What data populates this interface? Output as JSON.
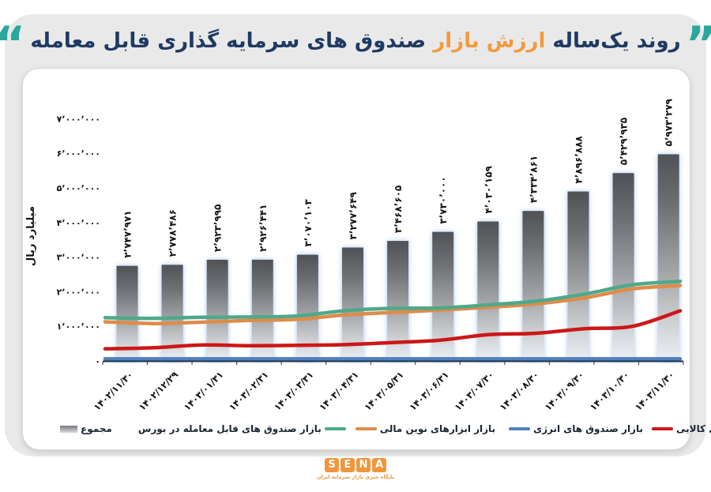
{
  "title": {
    "quote_open": "“",
    "quote_close": "”",
    "part1": "روند یک‌ساله ",
    "highlight": "ارزش بازار ",
    "part2": "صندوق های سرمایه گذاری قابل معامله",
    "quote_color": "#2ba89d",
    "highlight_color": "#f59a3e",
    "text_color": "#1f3a63"
  },
  "chart_data": {
    "type": "combo-bar-line",
    "title": "روند یک‌ساله ارزش بازار صندوق های سرمایه گذاری قابل معامله",
    "ylabel": "میلیارد ریال",
    "ylim": [
      0,
      7000000
    ],
    "ytick_step": 1000000,
    "ytick_labels": [
      "۰",
      "۱٬۰۰۰٬۰۰۰",
      "۲٬۰۰۰٬۰۰۰",
      "۳٬۰۰۰٬۰۰۰",
      "۴٬۰۰۰٬۰۰۰",
      "۵٬۰۰۰٬۰۰۰",
      "۶٬۰۰۰٬۰۰۰",
      "۷٬۰۰۰٬۰۰۰"
    ],
    "grid": false,
    "categories": [
      "۱۴۰۲/۱۱/۳۰",
      "۱۴۰۲/۱۲/۲۹",
      "۱۴۰۳/۰۱/۳۱",
      "۱۴۰۳/۰۲/۳۱",
      "۱۴۰۳/۰۳/۳۱",
      "۱۴۰۳/۰۴/۳۱",
      "۱۴۰۳/۰۵/۳۱",
      "۱۴۰۳/۰۶/۳۱",
      "۱۴۰۳/۰۷/۳۰",
      "۱۴۰۳/۰۸/۳۰",
      "۱۴۰۳/۰۹/۳۰",
      "۱۴۰۳/۱۰/۳۰",
      "۱۴۰۳/۱۱/۳۰"
    ],
    "bar_series": {
      "name": "مجموع",
      "values": [
        2747971,
        2778486,
        2923995,
        2926441,
        3070103,
        3277649,
        3468605,
        3730000,
        4030159,
        4334861,
        4896888,
        5429935,
        5973279
      ],
      "value_labels": [
        "۲٬۷۴۷٬۹۷۱",
        "۲٬۷۷۸٬۴۸۶",
        "۲٬۹۲۳٬۹۹۵",
        "۲٬۹۲۶٬۴۴۱",
        "۳٬۰۷۰٬۱۰۳",
        "۳٬۲۷۷٬۶۴۹",
        "۳٬۴۶۸٬۶۰۵",
        "۳٬۷۳۰٬۰۰۰",
        "۴٬۰۳۰٬۱۵۹",
        "۴٬۳۳۴٬۸۶۱",
        "۴٬۸۹۶٬۸۸۸",
        "۵٬۴۲۹٬۹۳۵",
        "۵٬۹۷۳٬۲۷۹"
      ],
      "bar_color_top": "#505256",
      "bar_color_bottom": "#ecf0f6",
      "glow_color": "#a9c6ee"
    },
    "line_series": [
      {
        "name": "بازار صندوق های قابل معامله در بورس",
        "color": "#4ea98a",
        "values": [
          1250000,
          1230000,
          1260000,
          1270000,
          1300000,
          1450000,
          1520000,
          1530000,
          1620000,
          1730000,
          1930000,
          2200000,
          2300000
        ]
      },
      {
        "name": "بازار ابزارهای نوین مالی",
        "color": "#de8c4a",
        "values": [
          1130000,
          1080000,
          1120000,
          1170000,
          1200000,
          1330000,
          1400000,
          1470000,
          1550000,
          1650000,
          1820000,
          2080000,
          2180000
        ]
      },
      {
        "name": "بازار صندوق های انرژی",
        "color": "#4f81bd",
        "values": [
          60000,
          60000,
          60000,
          60000,
          60000,
          60000,
          60000,
          60000,
          60000,
          60000,
          60000,
          60000,
          60000
        ]
      },
      {
        "name": "بازار صندوق های کالایی",
        "color": "#cc1717",
        "values": [
          350000,
          380000,
          460000,
          440000,
          450000,
          470000,
          530000,
          600000,
          760000,
          800000,
          930000,
          1000000,
          1450000
        ]
      }
    ],
    "legend_position": "bottom"
  },
  "legend": {
    "items": [
      {
        "label": "مجموع",
        "swatch": "bar",
        "color": "",
        "swatch_after": false
      },
      {
        "label": "بازار صندوق های قابل معامله در بورس",
        "swatch": "line",
        "color": "#4ea98a",
        "swatch_after": true
      },
      {
        "label": "بازار ابزارهای نوین مالی",
        "swatch": "line",
        "color": "#de8c4a",
        "swatch_after": false
      },
      {
        "label": "بازار صندوق های انرژی",
        "swatch": "line",
        "color": "#4f81bd",
        "swatch_after": false
      },
      {
        "label": "بازار صندوق های کالایی",
        "swatch": "line",
        "color": "#cc1717",
        "swatch_after": false
      }
    ]
  },
  "footer": {
    "letters": [
      "S",
      "E",
      "N",
      "A"
    ],
    "caption": "پایگاه خبری بازار سرمایه ایران",
    "logo_color": "#f0963c"
  }
}
